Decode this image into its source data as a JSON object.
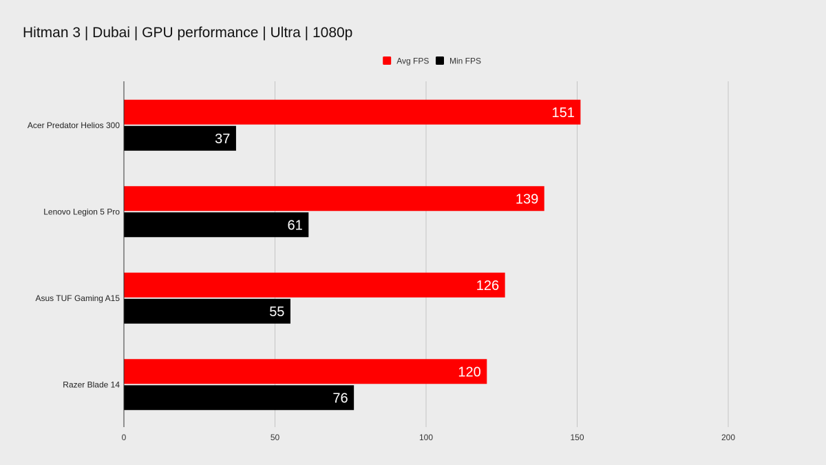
{
  "chart_data": {
    "type": "bar",
    "orientation": "horizontal",
    "title": "Hitman 3 | Dubai | GPU performance | Ultra | 1080p",
    "categories": [
      "Acer Predator Helios 300",
      "Lenovo Legion 5 Pro",
      "Asus TUF Gaming A15",
      "Razer Blade 14"
    ],
    "series": [
      {
        "name": "Avg FPS",
        "color": "#ff0000",
        "values": [
          151,
          139,
          126,
          120
        ]
      },
      {
        "name": "Min FPS",
        "color": "#000000",
        "values": [
          37,
          61,
          55,
          76
        ]
      }
    ],
    "xlim": [
      0,
      200
    ],
    "xticks": [
      "0",
      "50",
      "100",
      "150",
      "200"
    ],
    "grid": "vertical",
    "legend_position": "top-center",
    "data_labels": true
  }
}
